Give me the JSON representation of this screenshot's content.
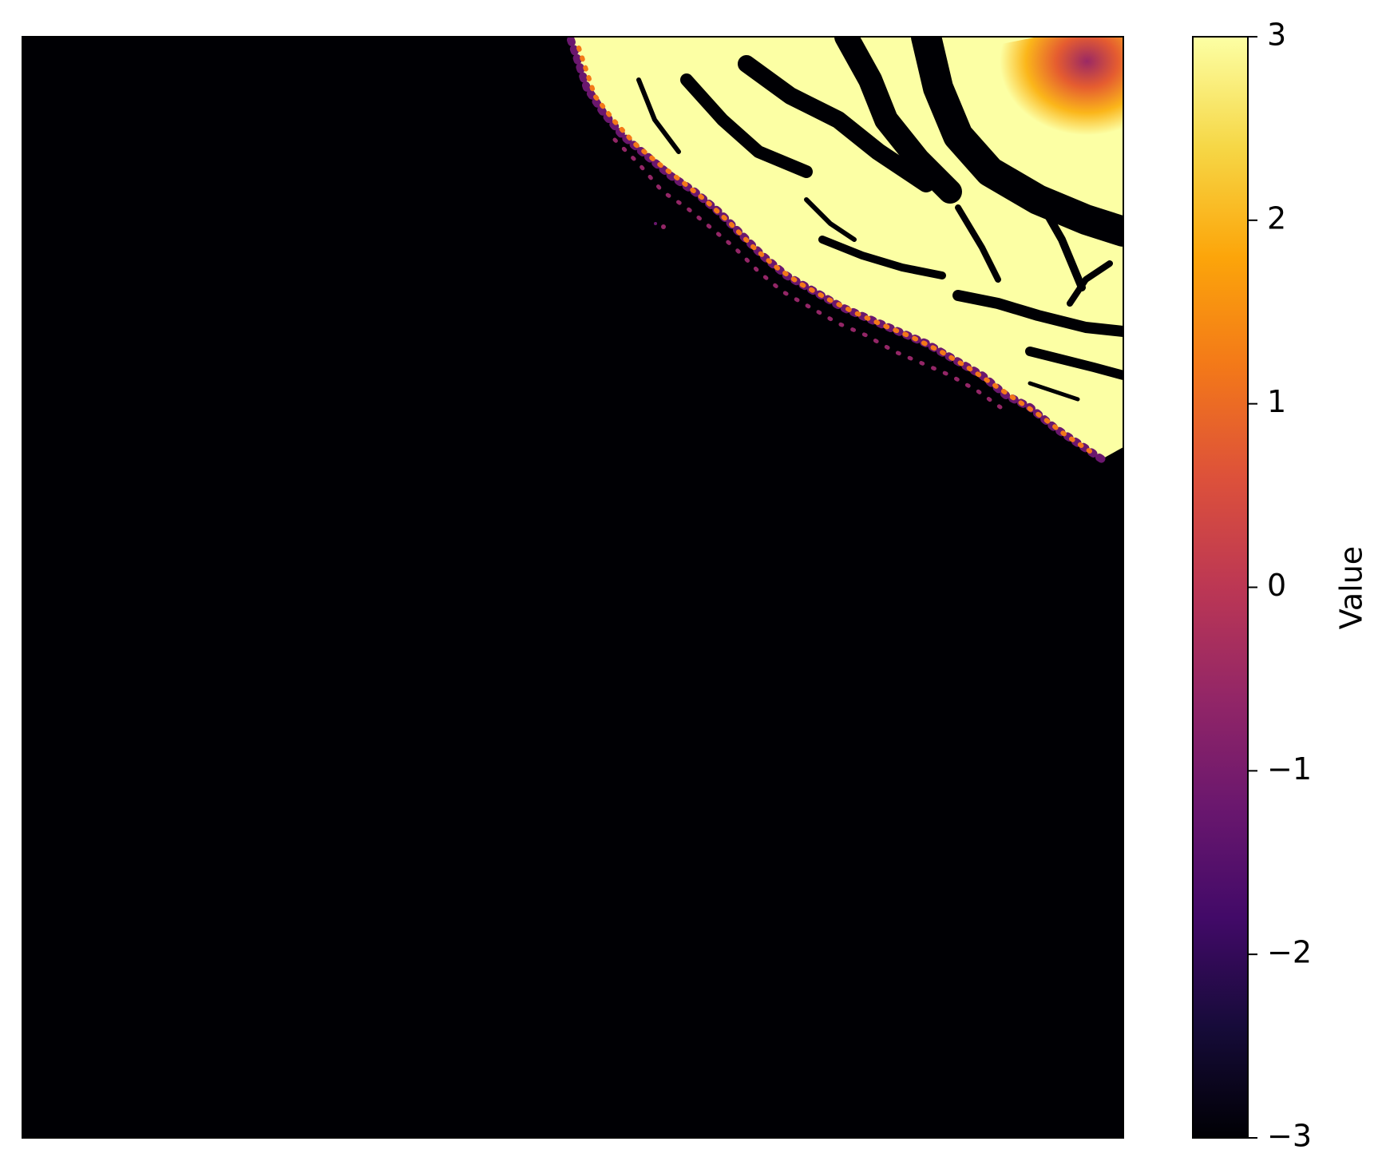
{
  "chart_data": {
    "type": "heatmap",
    "colormap": "inferno",
    "vmin": -3,
    "vmax": 3,
    "background_value": -3,
    "axes_visible": false,
    "grid": false,
    "colorbar": {
      "label": "Value",
      "position": "right",
      "ticks": [
        3,
        2,
        1,
        0,
        -1,
        -2,
        -3
      ],
      "tick_labels": [
        "3",
        "2",
        "1",
        "0",
        "−1",
        "−2",
        "−3"
      ]
    },
    "description_of_content": "",
    "colors": {
      "low": "#000004",
      "high": "#fcffa4",
      "frame": "#000000"
    }
  }
}
